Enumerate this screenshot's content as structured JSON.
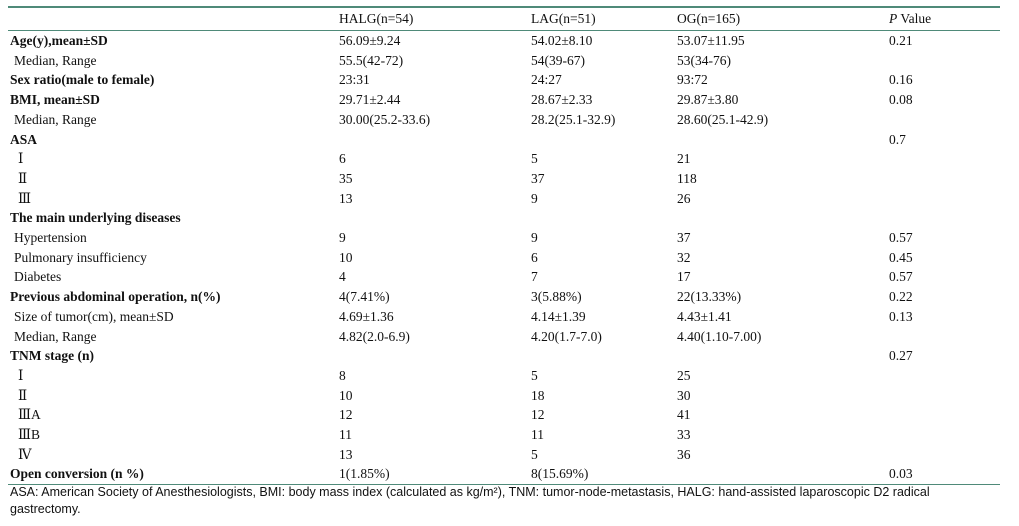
{
  "header": {
    "col0": "",
    "col1": "HALG(n=54)",
    "col2": "LAG(n=51)",
    "col3": "OG(n=165)",
    "col4_italic": "P",
    "col4_rest": " Value"
  },
  "rows": [
    {
      "label": "Age(y),mean±SD",
      "style": "bold",
      "c1": "56.09±9.24",
      "c2": "54.02±8.10",
      "c3": "53.07±11.95",
      "p": "0.21"
    },
    {
      "label": "Median, Range",
      "style": "sub",
      "c1": "55.5(42-72)",
      "c2": "54(39-67)",
      "c3": "53(34-76)",
      "p": ""
    },
    {
      "label": "Sex ratio(male to female)",
      "style": "bold",
      "c1": "23:31",
      "c2": "24:27",
      "c3": "93:72",
      "p": "0.16"
    },
    {
      "label": "BMI, mean±SD",
      "style": "bold",
      "c1": "29.71±2.44",
      "c2": "28.67±2.33",
      "c3": "29.87±3.80",
      "p": "0.08"
    },
    {
      "label": "Median, Range",
      "style": "sub",
      "c1": "30.00(25.2-33.6)",
      "c2": "28.2(25.1-32.9)",
      "c3": "28.60(25.1-42.9)",
      "p": ""
    },
    {
      "label": "ASA",
      "style": "bold",
      "c1": "",
      "c2": "",
      "c3": "",
      "p": "0.7"
    },
    {
      "label": "Ⅰ",
      "style": "roman",
      "c1": "6",
      "c2": "5",
      "c3": "21",
      "p": ""
    },
    {
      "label": "Ⅱ",
      "style": "roman",
      "c1": "35",
      "c2": "37",
      "c3": "118",
      "p": ""
    },
    {
      "label": "Ⅲ",
      "style": "roman",
      "c1": "13",
      "c2": "9",
      "c3": "26",
      "p": ""
    },
    {
      "label": "The main underlying diseases",
      "style": "bold",
      "c1": "",
      "c2": "",
      "c3": "",
      "p": ""
    },
    {
      "label": "Hypertension",
      "style": "sub",
      "c1": "9",
      "c2": "9",
      "c3": "37",
      "p": "0.57"
    },
    {
      "label": "Pulmonary insufficiency",
      "style": "sub",
      "c1": "10",
      "c2": "6",
      "c3": "32",
      "p": "0.45"
    },
    {
      "label": "Diabetes",
      "style": "sub",
      "c1": "4",
      "c2": "7",
      "c3": "17",
      "p": "0.57"
    },
    {
      "label": "Previous abdominal operation, n(%)",
      "style": "bold",
      "c1": "4(7.41%)",
      "c2": "3(5.88%)",
      "c3": "22(13.33%)",
      "p": "0.22"
    },
    {
      "label": "Size of tumor(cm), mean±SD",
      "style": "sub",
      "c1": "4.69±1.36",
      "c2": "4.14±1.39",
      "c3": "4.43±1.41",
      "p": "0.13"
    },
    {
      "label": "Median, Range",
      "style": "sub",
      "c1": "4.82(2.0-6.9)",
      "c2": "4.20(1.7-7.0)",
      "c3": "4.40(1.10-7.00)",
      "p": ""
    },
    {
      "label": "TNM stage (n)",
      "style": "bold",
      "c1": "",
      "c2": "",
      "c3": "",
      "p": "0.27"
    },
    {
      "label": "Ⅰ",
      "style": "roman",
      "c1": "8",
      "c2": "5",
      "c3": "25",
      "p": ""
    },
    {
      "label": "Ⅱ",
      "style": "roman",
      "c1": "10",
      "c2": "18",
      "c3": "30",
      "p": ""
    },
    {
      "label": "ⅢA",
      "style": "roman",
      "c1": "12",
      "c2": "12",
      "c3": "41",
      "p": ""
    },
    {
      "label": "ⅢB",
      "style": "roman",
      "c1": "11",
      "c2": "11",
      "c3": "33",
      "p": ""
    },
    {
      "label": "Ⅳ",
      "style": "roman",
      "c1": "13",
      "c2": "5",
      "c3": "36",
      "p": ""
    },
    {
      "label": "Open conversion (n %)",
      "style": "bold",
      "c1": "1(1.85%)",
      "c2": "8(15.69%)",
      "c3": "",
      "p": "0.03"
    }
  ],
  "footnote": "ASA: American Society of Anesthesiologists, BMI: body mass index (calculated as kg/m²), TNM: tumor-node-metastasis, HALG: hand-assisted laparoscopic D2 radical gastrectomy.",
  "colors": {
    "rule": "#4f8a79",
    "text": "#111111"
  }
}
